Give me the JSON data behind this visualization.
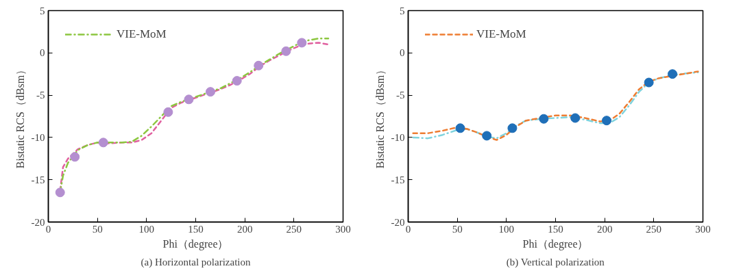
{
  "chart_data": [
    {
      "type": "line",
      "title": "(a) Horizontal polarization",
      "xlabel": "Phi（degree）",
      "ylabel": "Bistatic RCS（dBsm）",
      "xlim": [
        0,
        300
      ],
      "xticks": [
        0,
        50,
        100,
        150,
        200,
        250,
        300
      ],
      "ylim": [
        -20,
        5
      ],
      "yticks": [
        -20,
        -15,
        -10,
        -5,
        0,
        5
      ],
      "grid": false,
      "legend": "top left",
      "series": [
        {
          "name": "VIE-MoM",
          "color": "#8cc63f",
          "line_style": "dashdot",
          "x": [
            12,
            15,
            20,
            30,
            40,
            50,
            60,
            75,
            85,
            95,
            105,
            115,
            125,
            135,
            145,
            155,
            165,
            175,
            185,
            195,
            205,
            215,
            225,
            235,
            245,
            255,
            265,
            275,
            285
          ],
          "values": [
            -16.5,
            -14.5,
            -13,
            -11.5,
            -10.9,
            -10.6,
            -10.6,
            -10.6,
            -10.5,
            -9.8,
            -8.7,
            -7.5,
            -6.3,
            -5.8,
            -5.4,
            -5.0,
            -4.6,
            -4.2,
            -3.6,
            -3.0,
            -2.3,
            -1.5,
            -0.8,
            -0.1,
            0.5,
            1.1,
            1.5,
            1.7,
            1.7
          ]
        },
        {
          "color": "#e0609f",
          "line_style": "dashed",
          "x": [
            12,
            15,
            20,
            30,
            40,
            50,
            60,
            75,
            85,
            95,
            105,
            115,
            125,
            135,
            145,
            155,
            165,
            175,
            185,
            195,
            205,
            215,
            225,
            235,
            245,
            255,
            265,
            275,
            285
          ],
          "values": [
            -16.3,
            -13.5,
            -12.5,
            -11.4,
            -10.9,
            -10.6,
            -10.7,
            -10.6,
            -10.6,
            -10.3,
            -9.5,
            -8,
            -6.5,
            -5.9,
            -5.5,
            -5.1,
            -4.7,
            -4.3,
            -3.8,
            -3.2,
            -2.5,
            -1.6,
            -0.9,
            -0.3,
            0.3,
            0.8,
            1.1,
            1.2,
            1.0
          ]
        },
        {
          "type": "scatter",
          "marker": "circle",
          "color": "#b48fd0",
          "x": [
            12,
            27,
            56,
            122,
            143,
            165,
            192,
            214,
            242,
            258
          ],
          "values": [
            -16.5,
            -12.3,
            -10.6,
            -7.0,
            -5.5,
            -4.6,
            -3.3,
            -1.5,
            0.2,
            1.2
          ]
        }
      ]
    },
    {
      "type": "line",
      "title": "(b) Vertical polarization",
      "xlabel": "Phi（degree）",
      "ylabel": "Bistatic RCS（dBsm）",
      "xlim": [
        0,
        300
      ],
      "xticks": [
        0,
        50,
        100,
        150,
        200,
        250,
        300
      ],
      "ylim": [
        -20,
        5
      ],
      "yticks": [
        -20,
        -15,
        -10,
        -5,
        0,
        5
      ],
      "grid": false,
      "legend": "top left",
      "series": [
        {
          "name": "VIE-MoM",
          "color": "#ee7d32",
          "line_style": "dashed",
          "x": [
            5,
            20,
            35,
            50,
            60,
            70,
            80,
            90,
            100,
            110,
            120,
            135,
            150,
            165,
            180,
            195,
            205,
            215,
            225,
            235,
            245,
            255,
            270,
            285,
            295
          ],
          "values": [
            -9.5,
            -9.5,
            -9.2,
            -8.8,
            -9.0,
            -9.4,
            -9.9,
            -10.3,
            -9.7,
            -8.7,
            -8.0,
            -7.7,
            -7.4,
            -7.4,
            -7.7,
            -8.1,
            -8.0,
            -7.2,
            -5.8,
            -4.3,
            -3.4,
            -3.0,
            -2.7,
            -2.4,
            -2.2
          ]
        },
        {
          "color": "#7fd3dd",
          "line_style": "dashdot",
          "x": [
            5,
            20,
            35,
            50,
            60,
            70,
            80,
            90,
            100,
            110,
            120,
            135,
            150,
            165,
            180,
            195,
            205,
            215,
            225,
            235,
            245,
            255,
            270,
            285,
            295
          ],
          "values": [
            -10.0,
            -10.1,
            -9.7,
            -9.1,
            -9.0,
            -9.4,
            -9.9,
            -10.1,
            -9.5,
            -8.6,
            -8.0,
            -7.8,
            -7.7,
            -7.6,
            -7.9,
            -8.3,
            -8.3,
            -7.6,
            -6.2,
            -4.6,
            -3.5,
            -3.0,
            -2.6,
            -2.4,
            -2.3
          ]
        },
        {
          "type": "scatter",
          "marker": "circle",
          "color": "#1f6fb8",
          "x": [
            53,
            80,
            106,
            138,
            170,
            202,
            245,
            269
          ],
          "values": [
            -8.9,
            -9.8,
            -8.9,
            -7.8,
            -7.7,
            -8.0,
            -3.5,
            -2.5
          ]
        }
      ]
    }
  ]
}
